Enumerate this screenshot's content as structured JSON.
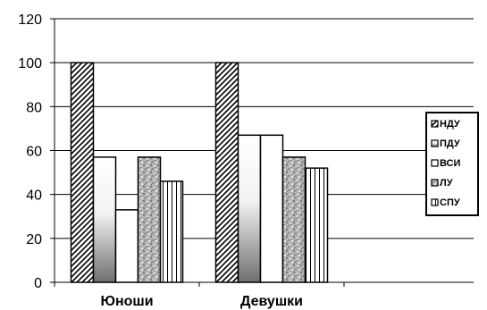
{
  "chart_data": {
    "type": "bar",
    "categories": [
      "Юноши",
      "Девушки"
    ],
    "series": [
      {
        "name": "НДУ",
        "values": [
          100,
          100
        ]
      },
      {
        "name": "ПДУ",
        "values": [
          57,
          67
        ]
      },
      {
        "name": "ВСИ",
        "values": [
          33,
          67
        ]
      },
      {
        "name": "ЛУ",
        "values": [
          57,
          57
        ]
      },
      {
        "name": "СПУ",
        "values": [
          46,
          52
        ]
      }
    ],
    "y_ticks": [
      "0",
      "20",
      "40",
      "60",
      "80",
      "100",
      "120"
    ],
    "ylim": [
      0,
      120
    ],
    "grid": true,
    "legend_position": "right"
  }
}
